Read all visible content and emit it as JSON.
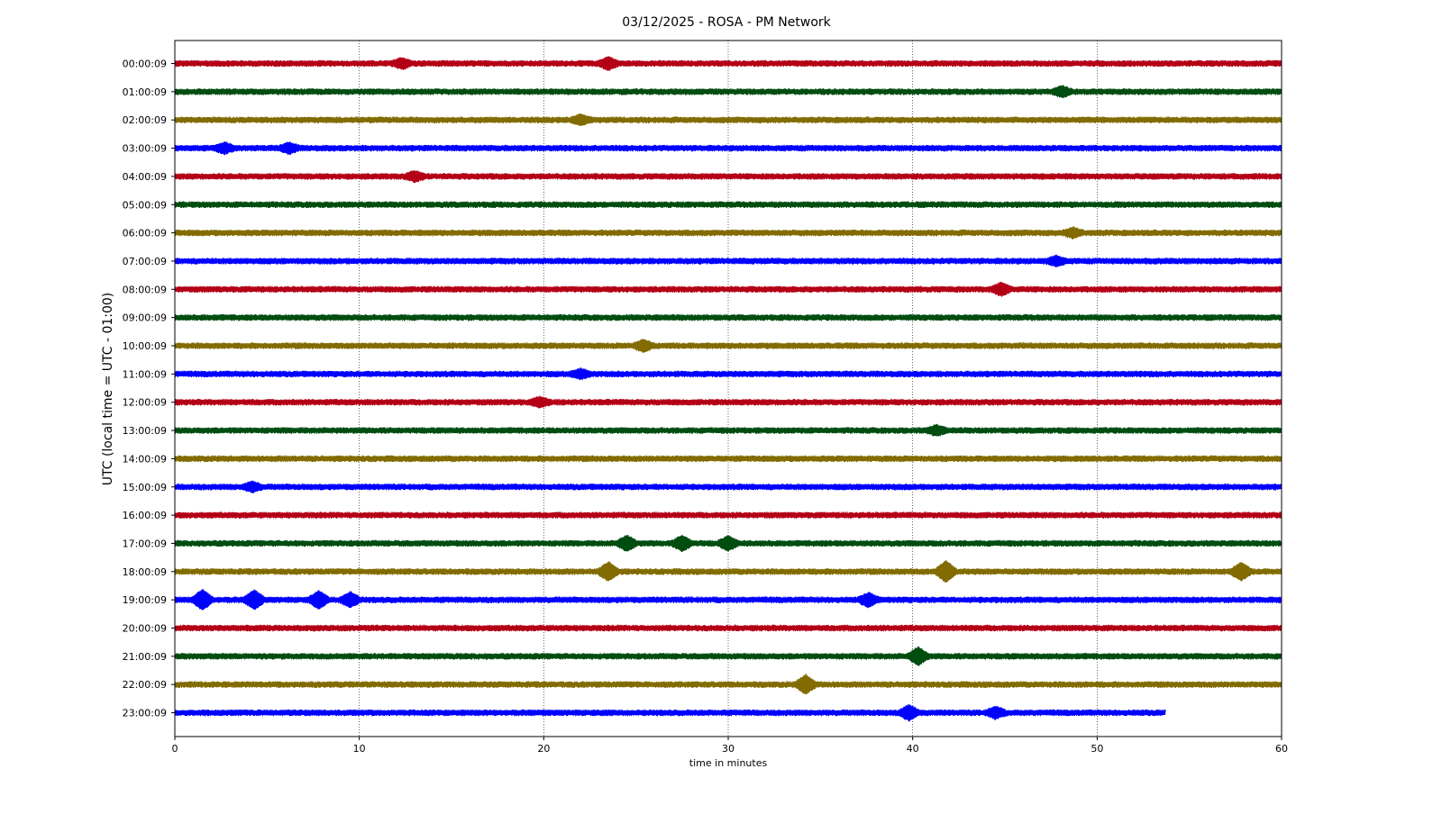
{
  "chart_data": {
    "type": "line",
    "title": "03/12/2025 - ROSA - PM Network",
    "xlabel": "time in minutes",
    "ylabel": "UTC (local time = UTC - 01:00)",
    "xlim": [
      0,
      60
    ],
    "x_ticks": [
      0,
      10,
      20,
      30,
      40,
      50,
      60
    ],
    "grid": "vertical dotted",
    "series_colors": [
      "#b40016",
      "#004d10",
      "#826b00",
      "#0000ff"
    ],
    "series": [
      {
        "name": "00:00:09",
        "x_end": 60,
        "events": [
          {
            "x": 12.3,
            "amp": 1.3
          },
          {
            "x": 23.5,
            "amp": 1.6
          }
        ]
      },
      {
        "name": "01:00:09",
        "x_end": 60,
        "events": [
          {
            "x": 48.1,
            "amp": 1.3
          }
        ]
      },
      {
        "name": "02:00:09",
        "x_end": 60,
        "events": [
          {
            "x": 22.0,
            "amp": 1.2
          }
        ]
      },
      {
        "name": "03:00:09",
        "x_end": 60,
        "events": [
          {
            "x": 2.7,
            "amp": 1.3
          },
          {
            "x": 6.2,
            "amp": 1.3
          }
        ]
      },
      {
        "name": "04:00:09",
        "x_end": 60,
        "events": [
          {
            "x": 13.0,
            "amp": 1.2
          }
        ]
      },
      {
        "name": "05:00:09",
        "x_end": 60,
        "events": []
      },
      {
        "name": "06:00:09",
        "x_end": 60,
        "events": [
          {
            "x": 48.7,
            "amp": 1.2
          }
        ]
      },
      {
        "name": "07:00:09",
        "x_end": 60,
        "events": [
          {
            "x": 47.8,
            "amp": 1.2
          }
        ]
      },
      {
        "name": "08:00:09",
        "x_end": 60,
        "events": [
          {
            "x": 44.8,
            "amp": 1.6
          }
        ]
      },
      {
        "name": "09:00:09",
        "x_end": 60,
        "events": []
      },
      {
        "name": "10:00:09",
        "x_end": 60,
        "events": [
          {
            "x": 25.4,
            "amp": 1.5
          }
        ]
      },
      {
        "name": "11:00:09",
        "x_end": 60,
        "events": [
          {
            "x": 22.0,
            "amp": 1.2
          }
        ]
      },
      {
        "name": "12:00:09",
        "x_end": 60,
        "events": [
          {
            "x": 19.8,
            "amp": 1.2
          }
        ]
      },
      {
        "name": "13:00:09",
        "x_end": 60,
        "events": [
          {
            "x": 41.3,
            "amp": 1.2
          }
        ]
      },
      {
        "name": "14:00:09",
        "x_end": 60,
        "events": []
      },
      {
        "name": "15:00:09",
        "x_end": 60,
        "events": [
          {
            "x": 4.2,
            "amp": 1.2
          }
        ]
      },
      {
        "name": "16:00:09",
        "x_end": 60,
        "events": []
      },
      {
        "name": "17:00:09",
        "x_end": 60,
        "events": [
          {
            "x": 24.5,
            "amp": 2.0
          },
          {
            "x": 27.5,
            "amp": 2.0
          },
          {
            "x": 30.0,
            "amp": 1.8
          }
        ]
      },
      {
        "name": "18:00:09",
        "x_end": 60,
        "events": [
          {
            "x": 23.5,
            "amp": 2.6
          },
          {
            "x": 41.8,
            "amp": 3.0
          },
          {
            "x": 57.8,
            "amp": 2.4
          }
        ]
      },
      {
        "name": "19:00:09",
        "x_end": 60,
        "events": [
          {
            "x": 1.5,
            "amp": 2.8
          },
          {
            "x": 4.3,
            "amp": 2.6
          },
          {
            "x": 7.8,
            "amp": 2.3
          },
          {
            "x": 9.5,
            "amp": 2.0
          },
          {
            "x": 37.6,
            "amp": 1.8
          }
        ]
      },
      {
        "name": "20:00:09",
        "x_end": 60,
        "events": []
      },
      {
        "name": "21:00:09",
        "x_end": 60,
        "events": [
          {
            "x": 40.3,
            "amp": 2.4
          }
        ]
      },
      {
        "name": "22:00:09",
        "x_end": 60,
        "events": [
          {
            "x": 34.2,
            "amp": 2.6
          }
        ]
      },
      {
        "name": "23:00:09",
        "x_end": 53.7,
        "events": [
          {
            "x": 39.8,
            "amp": 2.0
          },
          {
            "x": 44.5,
            "amp": 1.5
          }
        ]
      }
    ]
  }
}
